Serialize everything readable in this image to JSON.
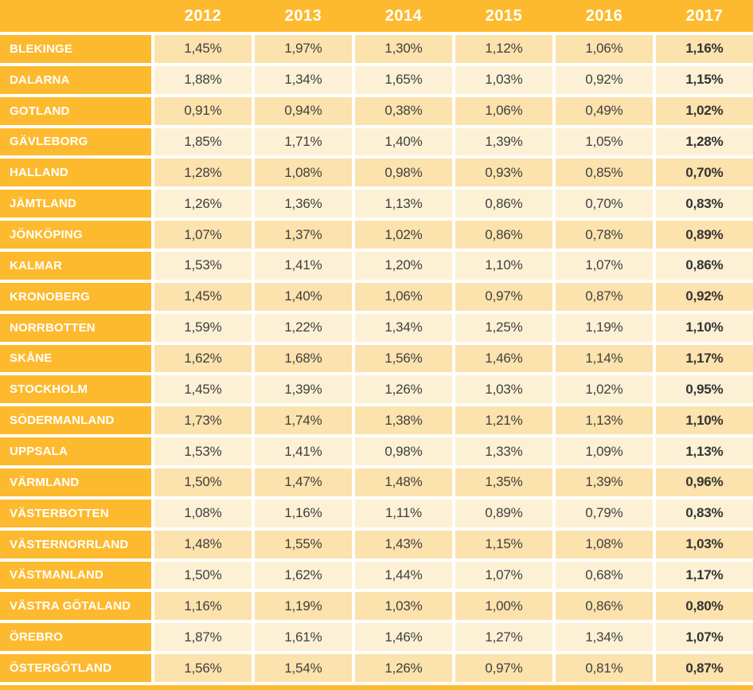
{
  "colors": {
    "orange": "#FDBA2E",
    "row_dark": "#FCE2AC",
    "row_light": "#FDF1D5",
    "header_text": "#FFFFFF",
    "value_text": "#3F3F3F"
  },
  "chart_data": {
    "type": "table",
    "title": "",
    "columns": [
      "2012",
      "2013",
      "2014",
      "2015",
      "2016",
      "2017"
    ],
    "corner_label": "",
    "rows": [
      {
        "label": "BLEKINGE",
        "values": [
          "1,45%",
          "1,97%",
          "1,30%",
          "1,12%",
          "1,06%",
          "1,16%"
        ]
      },
      {
        "label": "DALARNA",
        "values": [
          "1,88%",
          "1,34%",
          "1,65%",
          "1,03%",
          "0,92%",
          "1,15%"
        ]
      },
      {
        "label": "GOTLAND",
        "values": [
          "0,91%",
          "0,94%",
          "0,38%",
          "1,06%",
          "0,49%",
          "1,02%"
        ]
      },
      {
        "label": "GÄVLEBORG",
        "values": [
          "1,85%",
          "1,71%",
          "1,40%",
          "1,39%",
          "1,05%",
          "1,28%"
        ]
      },
      {
        "label": "HALLAND",
        "values": [
          "1,28%",
          "1,08%",
          "0,98%",
          "0,93%",
          "0,85%",
          "0,70%"
        ]
      },
      {
        "label": "JÄMTLAND",
        "values": [
          "1,26%",
          "1,36%",
          "1,13%",
          "0,86%",
          "0,70%",
          "0,83%"
        ]
      },
      {
        "label": "JÖNKÖPING",
        "values": [
          "1,07%",
          "1,37%",
          "1,02%",
          "0,86%",
          "0,78%",
          "0,89%"
        ]
      },
      {
        "label": "KALMAR",
        "values": [
          "1,53%",
          "1,41%",
          "1,20%",
          "1,10%",
          "1,07%",
          "0,86%"
        ]
      },
      {
        "label": "KRONOBERG",
        "values": [
          "1,45%",
          "1,40%",
          "1,06%",
          "0,97%",
          "0,87%",
          "0,92%"
        ]
      },
      {
        "label": "NORRBOTTEN",
        "values": [
          "1,59%",
          "1,22%",
          "1,34%",
          "1,25%",
          "1,19%",
          "1,10%"
        ]
      },
      {
        "label": "SKÅNE",
        "values": [
          "1,62%",
          "1,68%",
          "1,56%",
          "1,46%",
          "1,14%",
          "1,17%"
        ]
      },
      {
        "label": "STOCKHOLM",
        "values": [
          "1,45%",
          "1,39%",
          "1,26%",
          "1,03%",
          "1,02%",
          "0,95%"
        ]
      },
      {
        "label": "SÖDERMANLAND",
        "values": [
          "1,73%",
          "1,74%",
          "1,38%",
          "1,21%",
          "1,13%",
          "1,10%"
        ]
      },
      {
        "label": "UPPSALA",
        "values": [
          "1,53%",
          "1,41%",
          "0,98%",
          "1,33%",
          "1,09%",
          "1,13%"
        ]
      },
      {
        "label": "VÄRMLAND",
        "values": [
          "1,50%",
          "1,47%",
          "1,48%",
          "1,35%",
          "1,39%",
          "0,96%"
        ]
      },
      {
        "label": "VÄSTERBOTTEN",
        "values": [
          "1,08%",
          "1,16%",
          "1,11%",
          "0,89%",
          "0,79%",
          "0,83%"
        ]
      },
      {
        "label": "VÄSTERNORRLAND",
        "values": [
          "1,48%",
          "1,55%",
          "1,43%",
          "1,15%",
          "1,08%",
          "1,03%"
        ]
      },
      {
        "label": "VÄSTMANLAND",
        "values": [
          "1,50%",
          "1,62%",
          "1,44%",
          "1,07%",
          "0,68%",
          "1,17%"
        ]
      },
      {
        "label": "VÄSTRA GÖTALAND",
        "values": [
          "1,16%",
          "1,19%",
          "1,03%",
          "1,00%",
          "0,86%",
          "0,80%"
        ]
      },
      {
        "label": "ÖREBRO",
        "values": [
          "1,87%",
          "1,61%",
          "1,46%",
          "1,27%",
          "1,34%",
          "1,07%"
        ]
      },
      {
        "label": "ÖSTERGÖTLAND",
        "values": [
          "1,56%",
          "1,54%",
          "1,26%",
          "0,97%",
          "0,81%",
          "0,87%"
        ]
      }
    ],
    "layout": {
      "bold_column": "2017",
      "decimal_separator": ",",
      "grid": "white-gaps",
      "row_striping": "alternating-cream"
    }
  }
}
